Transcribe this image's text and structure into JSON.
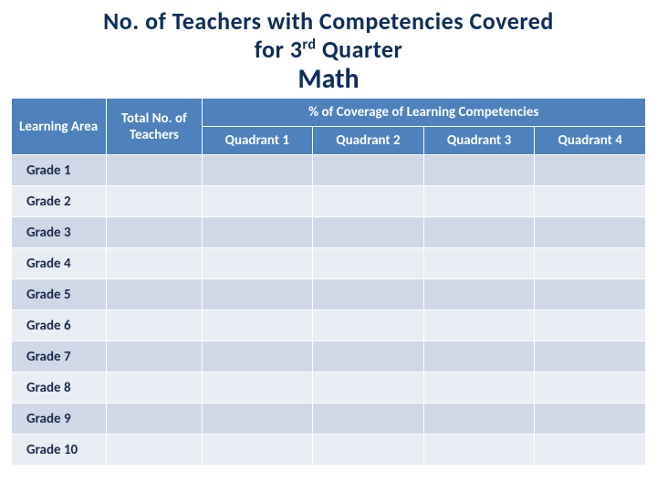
{
  "title_line1": "No. of Teachers with Competencies Covered",
  "title_line2_pre": "for 3",
  "title_line2_sup": "rd",
  "title_line2_post": " Quarter",
  "subject": "Math",
  "headers": {
    "learning_area": "Learning Area",
    "total_teachers": "Total No. of Teachers",
    "coverage": "% of Coverage of Learning Competencies",
    "q1": "Quadrant 1",
    "q2": "Quadrant 2",
    "q3": "Quadrant 3",
    "q4": "Quadrant 4"
  },
  "rows": [
    {
      "label": "Grade 1"
    },
    {
      "label": "Grade 2"
    },
    {
      "label": "Grade 3"
    },
    {
      "label": "Grade 4"
    },
    {
      "label": "Grade 5"
    },
    {
      "label": "Grade 6"
    },
    {
      "label": "Grade 7"
    },
    {
      "label": "Grade 8"
    },
    {
      "label": "Grade 9"
    },
    {
      "label": "Grade 10"
    }
  ],
  "colors": {
    "header_bg": "#4f81bd",
    "row_odd": "#d0d8e8",
    "row_even": "#e9edf4",
    "title_color": "#0d2c5a"
  }
}
